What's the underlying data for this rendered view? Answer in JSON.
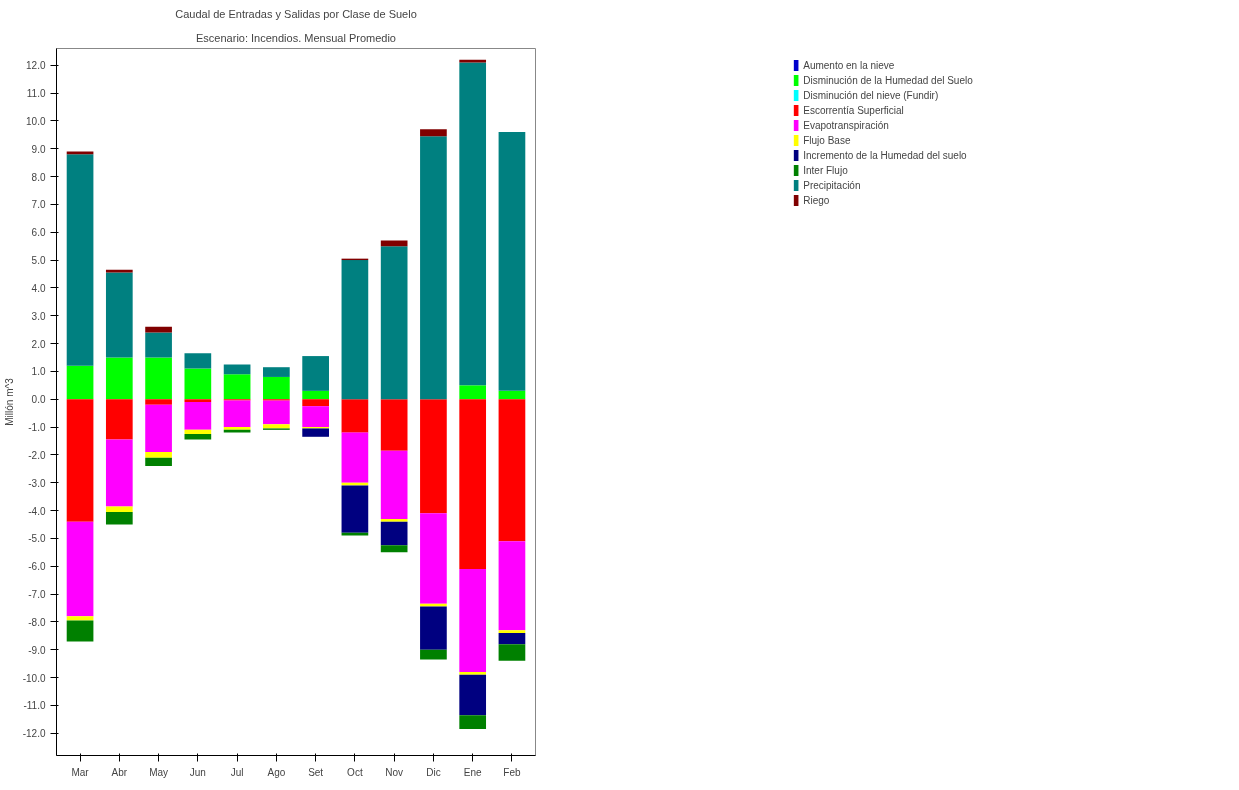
{
  "chart_data": {
    "type": "bar",
    "title": "Caudal de Entradas y Salidas por Clase de Suelo",
    "subtitle": "Escenario: Incendios. Mensual Promedio",
    "ylabel": "Millón m^3",
    "categories": [
      "Mar",
      "Abr",
      "May",
      "Jun",
      "Jul",
      "Ago",
      "Set",
      "Oct",
      "Nov",
      "Dic",
      "Ene",
      "Feb"
    ],
    "stacked": true,
    "ylim": [
      -12.8,
      12.6
    ],
    "yticks": [
      {
        "value": -12,
        "label": "-12.0"
      },
      {
        "value": -11,
        "label": "-11.0"
      },
      {
        "value": -10,
        "label": "-10.0"
      },
      {
        "value": -9,
        "label": "-9.0"
      },
      {
        "value": -8,
        "label": "-8.0"
      },
      {
        "value": -7,
        "label": "-7.0"
      },
      {
        "value": -6,
        "label": "-6.0"
      },
      {
        "value": -5,
        "label": "-5.0"
      },
      {
        "value": -4,
        "label": "-4.0"
      },
      {
        "value": -3,
        "label": "-3.0"
      },
      {
        "value": -2,
        "label": "-2.0"
      },
      {
        "value": -1,
        "label": "-1.0"
      },
      {
        "value": 0,
        "label": "0.0"
      },
      {
        "value": 1,
        "label": "1.0"
      },
      {
        "value": 2,
        "label": "2.0"
      },
      {
        "value": 3,
        "label": "3.0"
      },
      {
        "value": 4,
        "label": "4.0"
      },
      {
        "value": 5,
        "label": "5.0"
      },
      {
        "value": 6,
        "label": "6.0"
      },
      {
        "value": 7,
        "label": "7.0"
      },
      {
        "value": 8,
        "label": "8.0"
      },
      {
        "value": 9,
        "label": "9.0"
      },
      {
        "value": 10,
        "label": "10.0"
      },
      {
        "value": 11,
        "label": "11.0"
      },
      {
        "value": 12,
        "label": "12.0"
      }
    ],
    "grid": false,
    "legend": "top right",
    "series": [
      {
        "name": "Aumento en la nieve",
        "color": "#0000cc",
        "values": [
          0,
          0,
          0,
          0,
          0,
          0,
          0,
          0,
          0,
          0,
          0,
          0
        ]
      },
      {
        "name": "Disminución de la Humedad del Suelo",
        "color": "#00ff00",
        "values": [
          1.2,
          1.5,
          1.5,
          1.1,
          0.9,
          0.8,
          0.3,
          0,
          0,
          0,
          0.5,
          0.3
        ]
      },
      {
        "name": "Disminución del nieve (Fundir)",
        "color": "#00ffff",
        "values": [
          0,
          0,
          0,
          0,
          0,
          0,
          0,
          0,
          0,
          0,
          0,
          0
        ]
      },
      {
        "name": "Escorrentía Superficial",
        "color": "#ff0000",
        "values": [
          -4.4,
          -1.45,
          -0.2,
          -0.1,
          -0.05,
          -0.05,
          -0.25,
          -1.2,
          -1.85,
          -4.1,
          -6.1,
          -5.1
        ]
      },
      {
        "name": "Evapotranspiración",
        "color": "#ff00ff",
        "values": [
          -3.4,
          -2.4,
          -1.7,
          -1.0,
          -0.95,
          -0.85,
          -0.75,
          -1.8,
          -2.45,
          -3.25,
          -3.7,
          -3.2
        ]
      },
      {
        "name": "Flujo Base",
        "color": "#ffff00",
        "values": [
          -0.15,
          -0.2,
          -0.2,
          -0.15,
          -0.1,
          -0.15,
          -0.05,
          -0.1,
          -0.1,
          -0.1,
          -0.1,
          -0.1
        ]
      },
      {
        "name": "Incremento de la Humedad del suelo",
        "color": "#000080",
        "values": [
          0,
          0,
          0,
          0,
          0,
          0,
          -0.3,
          -1.7,
          -0.85,
          -1.55,
          -1.45,
          -0.4
        ]
      },
      {
        "name": "Inter Flujo",
        "color": "#008000",
        "values": [
          -0.75,
          -0.45,
          -0.3,
          -0.2,
          -0.1,
          -0.05,
          0,
          -0.1,
          -0.25,
          -0.35,
          -0.5,
          -0.6
        ]
      },
      {
        "name": "Precipitación",
        "color": "#008080",
        "values": [
          7.6,
          3.05,
          0.9,
          0.55,
          0.35,
          0.35,
          1.25,
          5.0,
          5.5,
          9.45,
          11.6,
          9.3
        ]
      },
      {
        "name": "Riego",
        "color": "#800000",
        "values": [
          0.1,
          0.1,
          0.2,
          0,
          0,
          0,
          0,
          0.05,
          0.2,
          0.25,
          0.1,
          0
        ]
      }
    ]
  }
}
